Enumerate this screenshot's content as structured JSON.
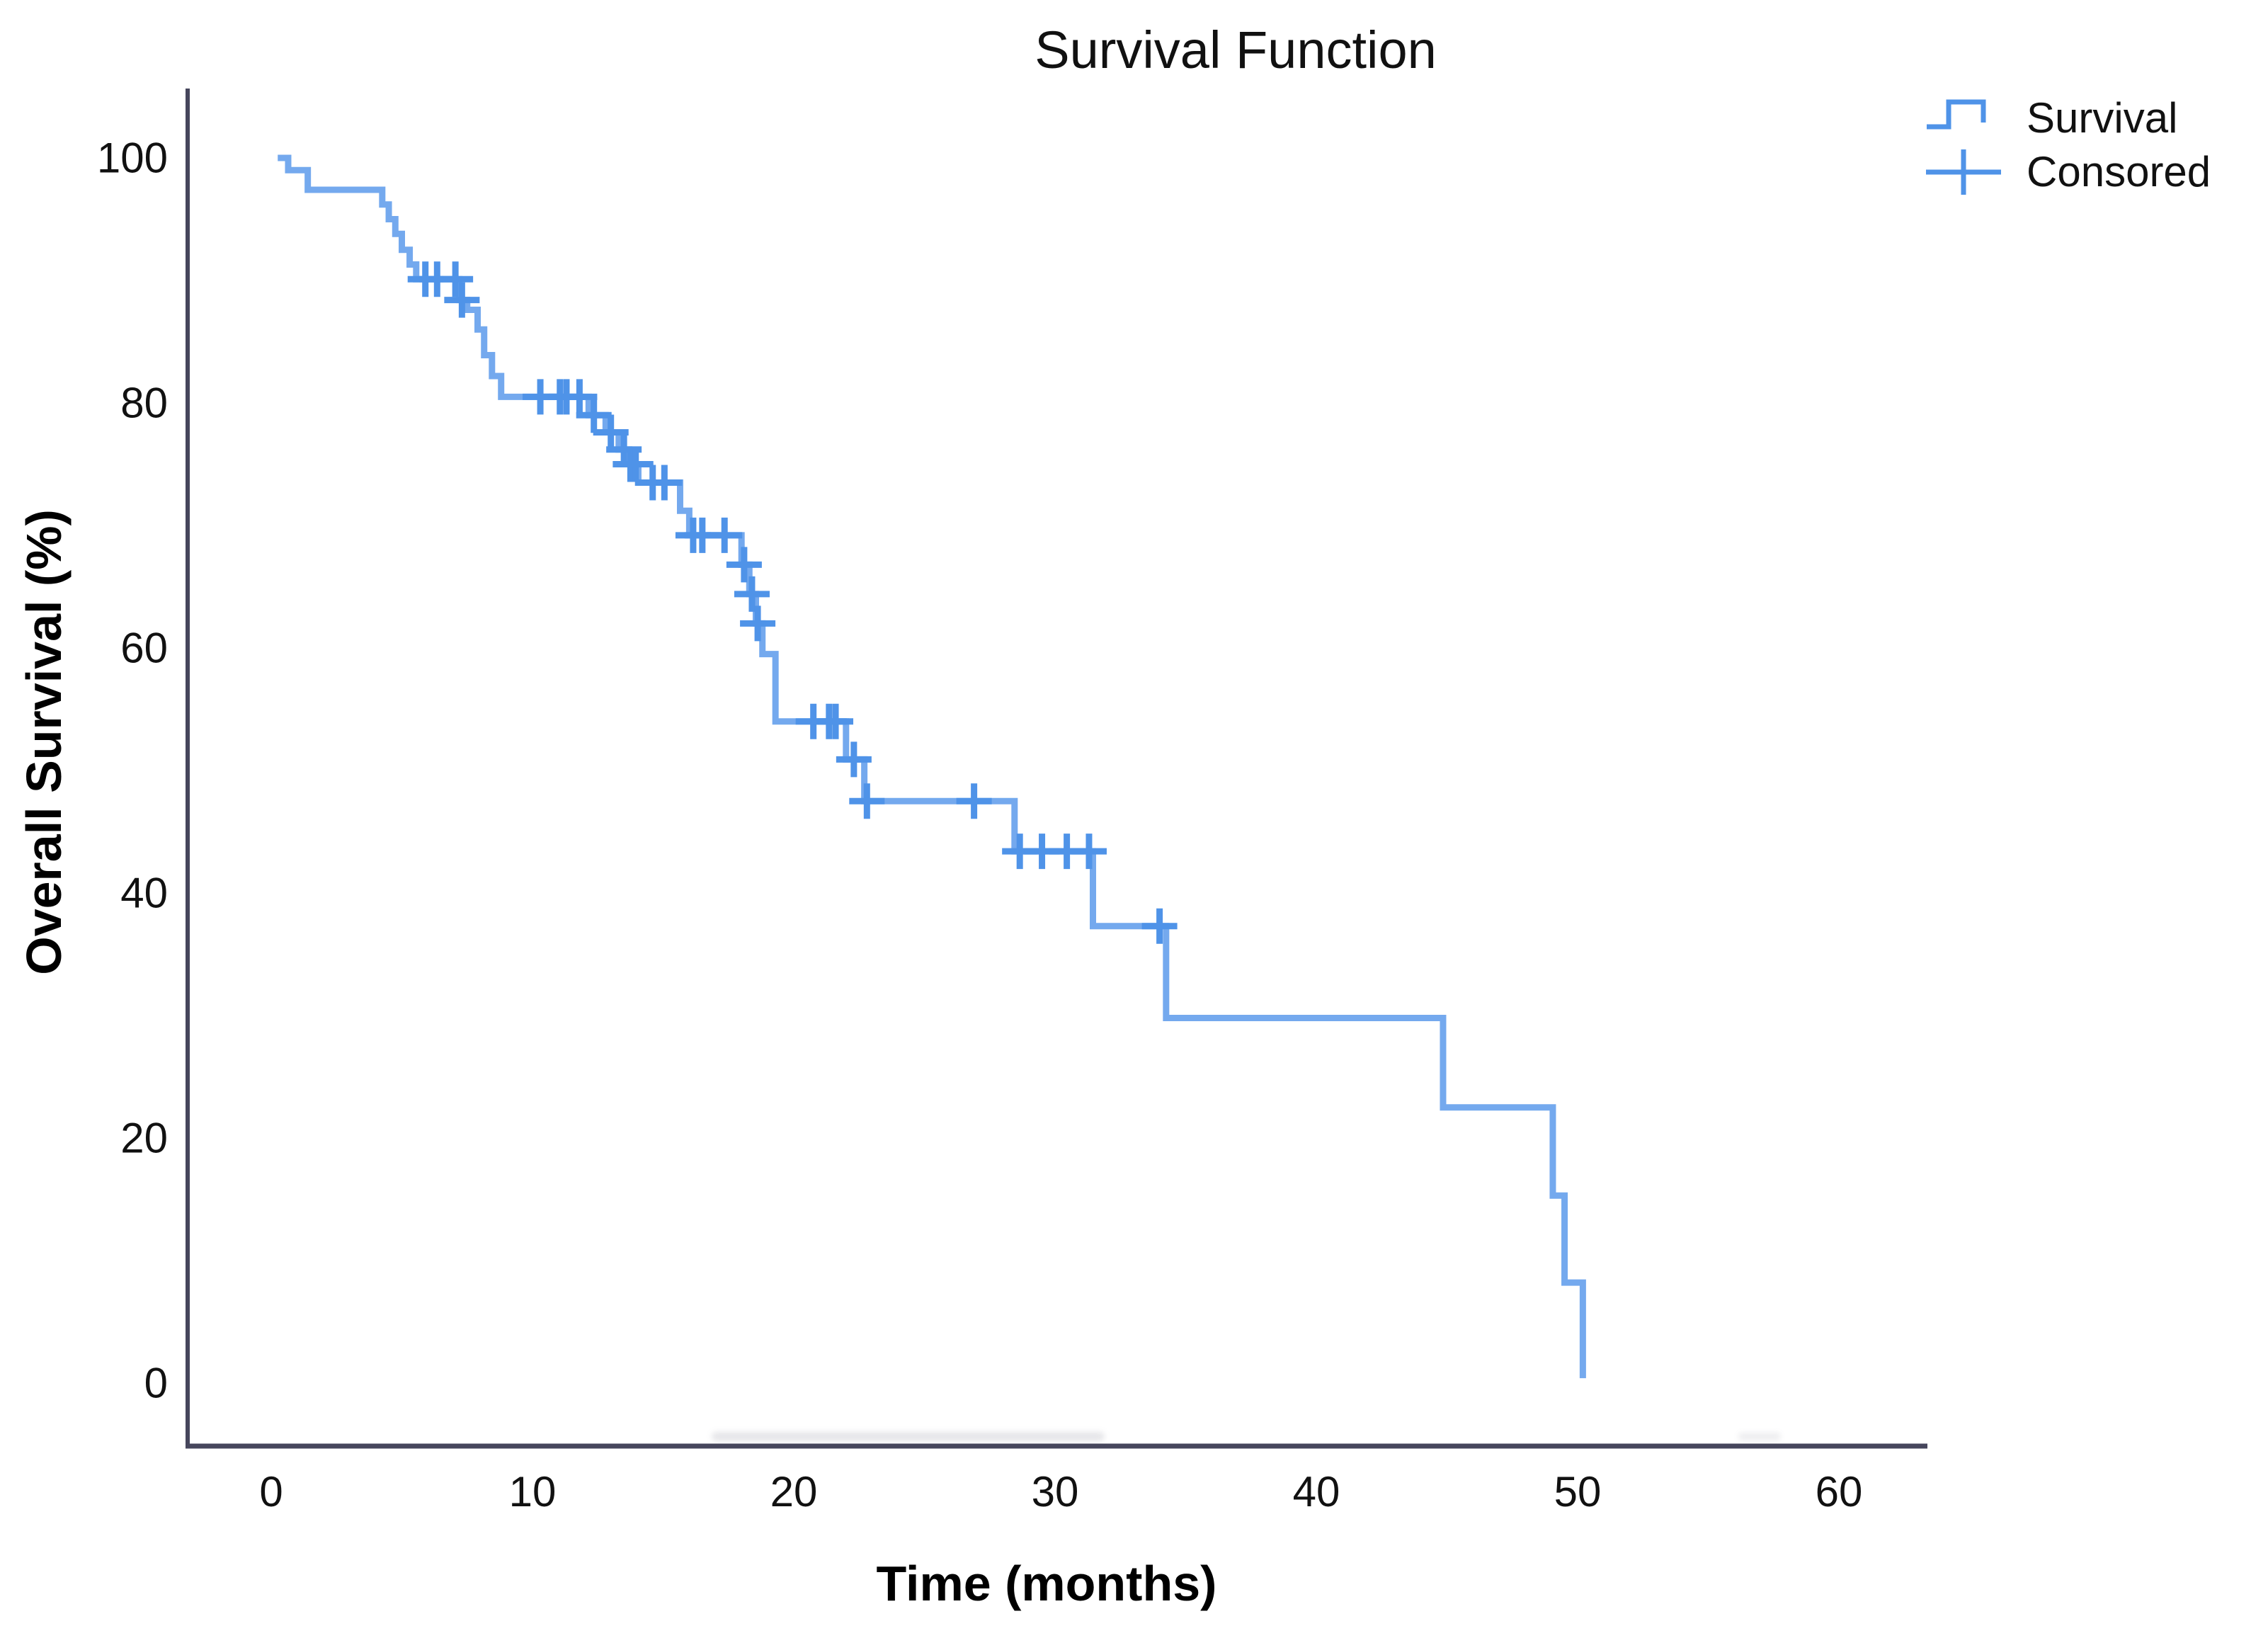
{
  "title": "Survival Function",
  "axes": {
    "x": {
      "label": "Time (months)",
      "tick_labels": [
        "0",
        "10",
        "20",
        "30",
        "40",
        "50",
        "60"
      ],
      "tick_values": [
        0,
        10,
        20,
        30,
        40,
        50,
        60
      ]
    },
    "y": {
      "label": "Overall Survival (%)",
      "tick_labels": [
        "100",
        "80",
        "60",
        "40",
        "20",
        "0"
      ],
      "tick_values": [
        100,
        80,
        60,
        40,
        20,
        0
      ]
    }
  },
  "legend": {
    "items": [
      {
        "label": "Survival",
        "marker": "step-line-icon"
      },
      {
        "label": "Consored",
        "marker": "plus-cross-icon"
      }
    ]
  },
  "colors": {
    "curve": "#74a9ee",
    "censor_marks": "#4f93e8",
    "axis": "#46465c",
    "text": "#111111",
    "background": "#ffffff"
  },
  "chart_data": {
    "type": "line",
    "subtype": "kaplan-meier-step-function",
    "title": "Survival Function",
    "xlabel": "Time (months)",
    "ylabel": "Overall Survival (%)",
    "xlim": [
      -3.2,
      63.7
    ],
    "ylim": [
      -5.2,
      105.7
    ],
    "grid": false,
    "legend_position": "top-right",
    "series": [
      {
        "name": "Survival",
        "steps_time_percent": [
          [
            0.25,
            100
          ],
          [
            0.65,
            99
          ],
          [
            1.4,
            97.4
          ],
          [
            4.25,
            96.2
          ],
          [
            4.5,
            95
          ],
          [
            4.75,
            93.8
          ],
          [
            5.0,
            92.5
          ],
          [
            5.3,
            91.3
          ],
          [
            5.55,
            90.1
          ],
          [
            7.2,
            88.4
          ],
          [
            7.5,
            87.6
          ],
          [
            7.9,
            86.0
          ],
          [
            8.15,
            83.9
          ],
          [
            8.45,
            82.2
          ],
          [
            8.8,
            80.5
          ],
          [
            12.15,
            79.0
          ],
          [
            12.8,
            77.6
          ],
          [
            13.3,
            76.2
          ],
          [
            13.7,
            75.0
          ],
          [
            14.05,
            73.5
          ],
          [
            15.65,
            71.2
          ],
          [
            16.0,
            69.2
          ],
          [
            18.0,
            66.8
          ],
          [
            18.3,
            64.4
          ],
          [
            18.55,
            62.0
          ],
          [
            18.8,
            59.5
          ],
          [
            19.3,
            54.0
          ],
          [
            22.0,
            50.9
          ],
          [
            22.7,
            47.5
          ],
          [
            28.45,
            43.4
          ],
          [
            31.45,
            37.3
          ],
          [
            34.25,
            29.8
          ],
          [
            44.85,
            22.5
          ],
          [
            49.05,
            15.3
          ],
          [
            49.5,
            8.2
          ],
          [
            50.2,
            0.4
          ]
        ],
        "end_time": 50.3
      }
    ],
    "censored_time_percent": [
      [
        5.9,
        90.1
      ],
      [
        6.35,
        90.1
      ],
      [
        7.05,
        90.1
      ],
      [
        7.3,
        88.4
      ],
      [
        10.3,
        80.5
      ],
      [
        11.05,
        80.5
      ],
      [
        11.3,
        80.5
      ],
      [
        11.8,
        80.5
      ],
      [
        12.35,
        79.0
      ],
      [
        13.0,
        77.6
      ],
      [
        13.5,
        76.2
      ],
      [
        13.75,
        75.0
      ],
      [
        13.95,
        75.0
      ],
      [
        14.6,
        73.5
      ],
      [
        15.05,
        73.5
      ],
      [
        16.15,
        69.2
      ],
      [
        16.5,
        69.2
      ],
      [
        17.35,
        69.2
      ],
      [
        18.1,
        66.8
      ],
      [
        18.4,
        64.4
      ],
      [
        18.62,
        62.0
      ],
      [
        20.75,
        54.0
      ],
      [
        21.35,
        54.0
      ],
      [
        21.6,
        54.0
      ],
      [
        22.3,
        50.9
      ],
      [
        22.8,
        47.5
      ],
      [
        26.9,
        47.5
      ],
      [
        28.65,
        43.4
      ],
      [
        29.5,
        43.4
      ],
      [
        30.45,
        43.4
      ],
      [
        31.3,
        43.4
      ],
      [
        34.0,
        37.3
      ]
    ]
  }
}
